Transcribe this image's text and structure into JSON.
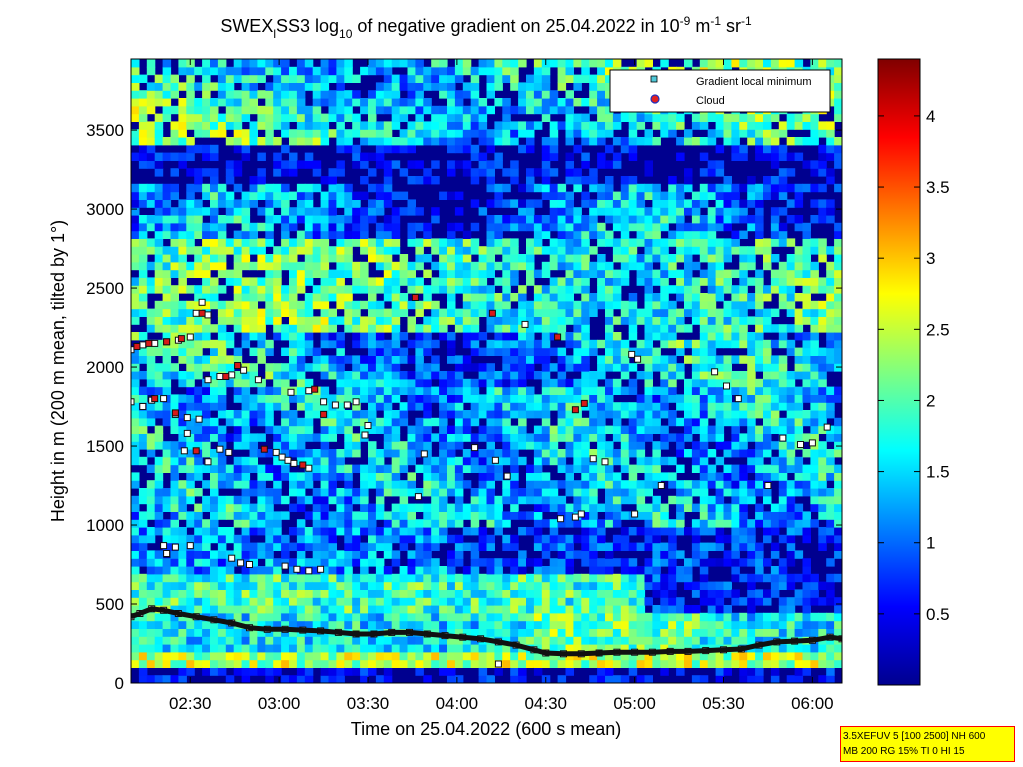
{
  "chart_data": {
    "type": "heatmap",
    "title": {
      "prefix": "SWEX",
      "prefix_sub": "l",
      "main": "SS3 log",
      "log_sub": "10",
      "middle": " of negative gradient on 25.04.2022 in 10",
      "exp1": "-9",
      "unit1": " m",
      "exp2": "-1",
      "unit2": " sr",
      "exp3": "-1"
    },
    "xlabel": "Time on 25.04.2022 (600 s mean)",
    "ylabel": "Height in m (200 m mean, tilted by 1°)",
    "x_range": [
      "02:10",
      "06:10"
    ],
    "x_ticks": [
      "02:30",
      "03:00",
      "03:30",
      "04:00",
      "04:30",
      "05:00",
      "05:30",
      "06:00"
    ],
    "y_range": [
      0,
      3950
    ],
    "y_ticks": [
      0,
      500,
      1000,
      1500,
      2000,
      2500,
      3000,
      3500
    ],
    "colorbar": {
      "range": [
        0,
        4.4
      ],
      "ticks": [
        0.5,
        1,
        1.5,
        2,
        2.5,
        3,
        3.5,
        4
      ],
      "colormap": "jet"
    },
    "legend": {
      "position": "top-right",
      "entries": [
        {
          "label": "Gradient local minimum",
          "marker": "square",
          "color": "#4fc8d8"
        },
        {
          "label": "Cloud",
          "marker": "circle",
          "color": "#e02020",
          "edge": "#2030c0"
        }
      ]
    },
    "series": [
      {
        "name": "Gradient local minimum",
        "points": [
          [
            "02:10",
            420
          ],
          [
            "02:13",
            440
          ],
          [
            "02:17",
            470
          ],
          [
            "02:21",
            460
          ],
          [
            "02:26",
            440
          ],
          [
            "02:32",
            420
          ],
          [
            "02:38",
            400
          ],
          [
            "02:44",
            380
          ],
          [
            "02:50",
            350
          ],
          [
            "02:56",
            340
          ],
          [
            "03:02",
            340
          ],
          [
            "03:08",
            335
          ],
          [
            "03:14",
            330
          ],
          [
            "03:20",
            320
          ],
          [
            "03:26",
            310
          ],
          [
            "03:32",
            310
          ],
          [
            "03:38",
            320
          ],
          [
            "03:44",
            320
          ],
          [
            "03:50",
            310
          ],
          [
            "03:56",
            300
          ],
          [
            "04:02",
            290
          ],
          [
            "04:08",
            280
          ],
          [
            "04:14",
            260
          ],
          [
            "04:20",
            240
          ],
          [
            "04:26",
            210
          ],
          [
            "04:30",
            190
          ],
          [
            "04:36",
            185
          ],
          [
            "04:42",
            185
          ],
          [
            "04:48",
            190
          ],
          [
            "04:54",
            195
          ],
          [
            "05:00",
            195
          ],
          [
            "05:06",
            195
          ],
          [
            "05:12",
            200
          ],
          [
            "05:18",
            200
          ],
          [
            "05:24",
            205
          ],
          [
            "05:30",
            210
          ],
          [
            "05:36",
            215
          ],
          [
            "05:42",
            240
          ],
          [
            "05:48",
            260
          ],
          [
            "05:54",
            265
          ],
          [
            "06:00",
            270
          ],
          [
            "06:06",
            290
          ],
          [
            "06:10",
            280
          ],
          [
            "04:14",
            120
          ],
          [
            "02:10",
            2110
          ],
          [
            "02:14",
            2140
          ],
          [
            "02:18",
            2150
          ],
          [
            "02:22",
            2160
          ],
          [
            "02:26",
            2170
          ],
          [
            "02:30",
            2190
          ],
          [
            "02:32",
            2340
          ],
          [
            "02:36",
            2330
          ],
          [
            "02:34",
            2410
          ],
          [
            "02:10",
            1780
          ],
          [
            "02:14",
            1750
          ],
          [
            "02:17",
            1790
          ],
          [
            "02:21",
            1800
          ],
          [
            "02:25",
            1700
          ],
          [
            "02:29",
            1680
          ],
          [
            "02:33",
            1670
          ],
          [
            "02:29",
            1580
          ],
          [
            "02:28",
            1470
          ],
          [
            "02:36",
            1920
          ],
          [
            "02:40",
            1940
          ],
          [
            "02:44",
            1950
          ],
          [
            "02:48",
            1980
          ],
          [
            "02:53",
            1920
          ],
          [
            "02:40",
            1480
          ],
          [
            "02:43",
            1460
          ],
          [
            "02:36",
            1400
          ],
          [
            "02:21",
            870
          ],
          [
            "02:25",
            860
          ],
          [
            "02:30",
            870
          ],
          [
            "02:22",
            820
          ],
          [
            "02:44",
            790
          ],
          [
            "02:47",
            760
          ],
          [
            "02:50",
            750
          ],
          [
            "02:59",
            1460
          ],
          [
            "03:01",
            1430
          ],
          [
            "03:03",
            1410
          ],
          [
            "03:05",
            1390
          ],
          [
            "03:10",
            1360
          ],
          [
            "03:04",
            1840
          ],
          [
            "03:10",
            1850
          ],
          [
            "03:15",
            1780
          ],
          [
            "03:19",
            1760
          ],
          [
            "03:23",
            1760
          ],
          [
            "03:26",
            1780
          ],
          [
            "03:02",
            740
          ],
          [
            "03:06",
            720
          ],
          [
            "03:10",
            710
          ],
          [
            "03:14",
            720
          ],
          [
            "03:30",
            1630
          ],
          [
            "03:29",
            1570
          ],
          [
            "03:47",
            1180
          ],
          [
            "03:49",
            1450
          ],
          [
            "04:06",
            1490
          ],
          [
            "04:13",
            1410
          ],
          [
            "04:17",
            1310
          ],
          [
            "04:23",
            2270
          ],
          [
            "04:35",
            1040
          ],
          [
            "04:40",
            1050
          ],
          [
            "04:42",
            1070
          ],
          [
            "04:46",
            1420
          ],
          [
            "04:50",
            1400
          ],
          [
            "04:59",
            2080
          ],
          [
            "05:01",
            2050
          ],
          [
            "05:00",
            1070
          ],
          [
            "05:09",
            1250
          ],
          [
            "05:27",
            1970
          ],
          [
            "05:31",
            1880
          ],
          [
            "05:35",
            1800
          ],
          [
            "05:45",
            1250
          ],
          [
            "05:50",
            1550
          ],
          [
            "05:56",
            1510
          ],
          [
            "06:00",
            1520
          ],
          [
            "06:05",
            1620
          ]
        ]
      },
      {
        "name": "Cloud",
        "points": [
          [
            "02:12",
            2130
          ],
          [
            "02:16",
            2150
          ],
          [
            "02:22",
            2160
          ],
          [
            "02:27",
            2180
          ],
          [
            "02:34",
            2340
          ],
          [
            "02:18",
            1800
          ],
          [
            "02:25",
            1710
          ],
          [
            "02:46",
            2010
          ],
          [
            "02:55",
            1480
          ],
          [
            "03:08",
            1380
          ],
          [
            "03:12",
            1860
          ],
          [
            "03:15",
            1700
          ],
          [
            "03:46",
            2440
          ],
          [
            "04:12",
            2340
          ],
          [
            "04:34",
            2190
          ],
          [
            "04:40",
            1730
          ],
          [
            "04:43",
            1770
          ],
          [
            "02:42",
            1940
          ],
          [
            "02:32",
            1470
          ]
        ]
      }
    ]
  },
  "info_box": {
    "line1": "3.5XEFUV 5 [100 2500] NH 600",
    "line2": "MB 200 RG 15% TI 0 HI 15"
  },
  "colors": {
    "jet_low": "#00008f",
    "jet_high": "#800000",
    "track": "#111111"
  }
}
